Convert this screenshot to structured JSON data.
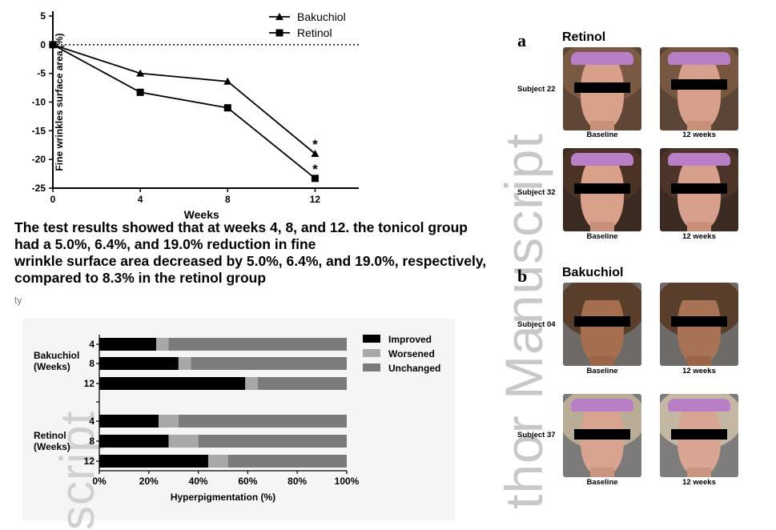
{
  "chart_data": [
    {
      "type": "line",
      "title": "",
      "xlabel": "Weeks",
      "ylabel": "Fine wrinkles surface area (%)",
      "x": [
        0,
        4,
        8,
        12
      ],
      "xticks": [
        "0",
        "4",
        "8",
        "12"
      ],
      "yticks": [
        "5",
        "0",
        "-5",
        "-10",
        "-15",
        "-20",
        "-25"
      ],
      "ylim": [
        -25,
        5
      ],
      "xlim": [
        0,
        14
      ],
      "legend_position": "top-right",
      "series": [
        {
          "name": "Bakuchiol",
          "marker": "triangle",
          "values": [
            0,
            -5.0,
            -6.4,
            -19.0
          ],
          "annotation": "*"
        },
        {
          "name": "Retinol",
          "marker": "square",
          "values": [
            0,
            -8.3,
            -11.0,
            -23.3
          ],
          "annotation": "*"
        }
      ]
    },
    {
      "type": "bar",
      "orientation": "horizontal",
      "stacked": true,
      "xlabel": "Hyperpigmentation (%)",
      "xticks": [
        "0%",
        "20%",
        "40%",
        "60%",
        "80%",
        "100%"
      ],
      "xlim": [
        0,
        100
      ],
      "legend_position": "top-right",
      "series_names": [
        "Improved",
        "Worsened",
        "Unchanged"
      ],
      "colors": [
        "#000000",
        "#a8a8a8",
        "#7b7b7b"
      ],
      "groups": [
        {
          "label": "Bakuchiol (Weeks)",
          "label_lines": [
            "Bakuchiol",
            "(Weeks)"
          ],
          "rows": [
            {
              "week": "4",
              "values": [
                23,
                5,
                72
              ]
            },
            {
              "week": "8",
              "values": [
                32,
                5,
                63
              ]
            },
            {
              "week": "12",
              "values": [
                59,
                5,
                36
              ]
            }
          ]
        },
        {
          "label": "Retinol (Weeks)",
          "label_lines": [
            "Retinol",
            "(Weeks)"
          ],
          "rows": [
            {
              "week": "4",
              "values": [
                24,
                8,
                68
              ]
            },
            {
              "week": "8",
              "values": [
                28,
                12,
                60
              ]
            },
            {
              "week": "12",
              "values": [
                44,
                8,
                48
              ]
            }
          ]
        }
      ]
    }
  ],
  "caption_lines": [
    "The test results showed that at weeks 4, 8, and 12. the tonicol group",
    "had a 5.0%, 6.4%, and 19.0% reduction in fine",
    "wrinkle surface area decreased by 5.0%, 6.4%, and 19.0%, respectively,",
    "compared to 8.3% in the retinol group"
  ],
  "caption_fragment": "ty",
  "photo_panel": {
    "a": {
      "letter": "a",
      "title": "Retinol",
      "subjects": [
        "Subject 22",
        "Subject 32"
      ]
    },
    "b": {
      "letter": "b",
      "title": "Bakuchiol",
      "subjects": [
        "Subject 04",
        "Subject 37"
      ]
    },
    "baseline_label": "Baseline",
    "followup_label": "12 weeks"
  },
  "watermarks": {
    "right": "Author Manuscript",
    "right_visible": "thor Manuscript",
    "left": "script"
  },
  "colors": {
    "line": "#000000",
    "headband": "#b87fc6",
    "skin_light": "#d9a08a",
    "skin_tan": "#a56f4f",
    "watermark": "#c8c8c8"
  }
}
